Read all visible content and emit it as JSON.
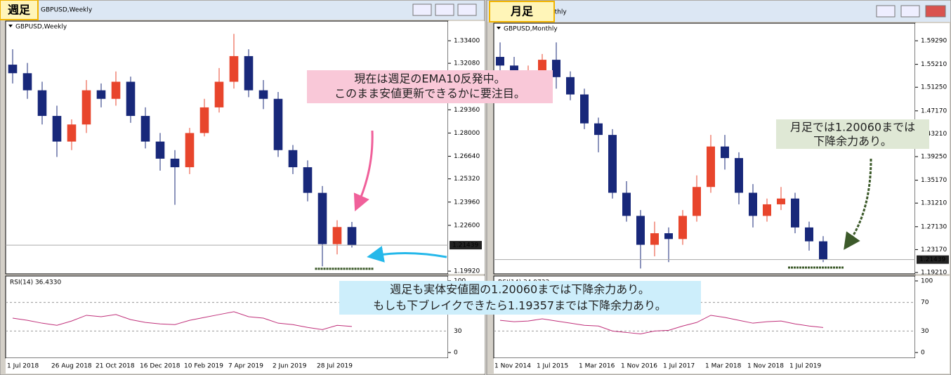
{
  "chart_data": [
    {
      "type": "candlestick",
      "window_title": "GBPUSD,Weekly",
      "symbol_label": "GBPUSD,Weekly",
      "timeframe_badge": "週足",
      "categories": [
        "1 Jul 2018",
        null,
        null,
        "26 Aug 2018",
        null,
        null,
        "21 Oct 2018",
        null,
        null,
        "16 Dec 2018",
        null,
        null,
        "10 Feb 2019",
        null,
        null,
        "7 Apr 2019",
        null,
        null,
        "2 Jun 2019",
        null,
        null,
        "28 Jul 2019",
        null,
        null
      ],
      "open": [
        1.32,
        1.315,
        1.305,
        1.29,
        1.275,
        1.285,
        1.305,
        1.3,
        1.31,
        1.29,
        1.275,
        1.265,
        1.26,
        1.28,
        1.295,
        1.31,
        1.325,
        1.305,
        1.3,
        1.27,
        1.26,
        1.245,
        1.215,
        1.225
      ],
      "high": [
        1.329,
        1.321,
        1.31,
        1.296,
        1.288,
        1.311,
        1.309,
        1.316,
        1.313,
        1.295,
        1.28,
        1.27,
        1.283,
        1.3,
        1.318,
        1.338,
        1.329,
        1.311,
        1.304,
        1.273,
        1.264,
        1.249,
        1.229,
        1.228
      ],
      "low": [
        1.309,
        1.3,
        1.285,
        1.266,
        1.27,
        1.28,
        1.295,
        1.296,
        1.286,
        1.271,
        1.258,
        1.238,
        1.256,
        1.278,
        1.292,
        1.306,
        1.301,
        1.294,
        1.266,
        1.256,
        1.24,
        1.202,
        1.209,
        1.213
      ],
      "close": [
        1.315,
        1.305,
        1.29,
        1.275,
        1.285,
        1.305,
        1.3,
        1.31,
        1.29,
        1.275,
        1.265,
        1.26,
        1.28,
        1.295,
        1.31,
        1.325,
        1.305,
        1.3,
        1.27,
        1.26,
        1.245,
        1.215,
        1.225,
        1.2144
      ],
      "up_color": "#e8452c",
      "down_color": "#18287a",
      "ylim": [
        1.1976,
        1.3455
      ],
      "yticks": [
        {
          "value": 1.334,
          "label": "1.33400"
        },
        {
          "value": 1.3208,
          "label": "1.32080"
        },
        {
          "value": 1.3076,
          "label": "1.30760"
        },
        {
          "value": 1.2936,
          "label": "1.29360"
        },
        {
          "value": 1.28,
          "label": "1.28000"
        },
        {
          "value": 1.2664,
          "label": "1.26640"
        },
        {
          "value": 1.2532,
          "label": "1.25320"
        },
        {
          "value": 1.2396,
          "label": "1.23960"
        },
        {
          "value": 1.226,
          "label": "1.22600"
        },
        {
          "value": 1.1992,
          "label": "1.19920"
        }
      ],
      "current_price": {
        "value": 1.21439,
        "label": "1.21439"
      },
      "support_level": 1.2006,
      "rsi": {
        "label": "RSI(14) 36.4330",
        "values": [
          48,
          45,
          41,
          38,
          44,
          52,
          50,
          53,
          46,
          42,
          40,
          39,
          45,
          49,
          53,
          57,
          50,
          48,
          41,
          39,
          35,
          32,
          38,
          36.433
        ],
        "ylim": [
          0,
          100
        ],
        "yticks": [
          100,
          70,
          30,
          0
        ],
        "color": "#c0307a"
      }
    },
    {
      "type": "candlestick",
      "window_title": "GBPUSD,Monthly",
      "symbol_label": "GBPUSD,Monthly",
      "timeframe_badge": "月足",
      "categories": [
        "1 Nov 2014",
        null,
        null,
        "1 Jul 2015",
        null,
        null,
        "1 Mar 2016",
        null,
        null,
        "1 Nov 2016",
        null,
        null,
        "1 Jul 2017",
        null,
        null,
        "1 Mar 2018",
        null,
        null,
        "1 Nov 2018",
        null,
        null,
        "1 Jul 2019",
        null,
        null
      ],
      "open": [
        1.565,
        1.55,
        1.52,
        1.54,
        1.56,
        1.53,
        1.5,
        1.45,
        1.43,
        1.33,
        1.29,
        1.24,
        1.26,
        1.25,
        1.29,
        1.34,
        1.41,
        1.39,
        1.33,
        1.29,
        1.31,
        1.32,
        1.27,
        1.246
      ],
      "high": [
        1.59,
        1.565,
        1.55,
        1.57,
        1.59,
        1.54,
        1.51,
        1.46,
        1.44,
        1.35,
        1.3,
        1.28,
        1.27,
        1.3,
        1.36,
        1.43,
        1.43,
        1.4,
        1.345,
        1.32,
        1.34,
        1.33,
        1.28,
        1.255
      ],
      "low": [
        1.53,
        1.51,
        1.505,
        1.52,
        1.51,
        1.49,
        1.44,
        1.4,
        1.32,
        1.28,
        1.199,
        1.22,
        1.21,
        1.24,
        1.28,
        1.33,
        1.37,
        1.31,
        1.27,
        1.28,
        1.3,
        1.26,
        1.23,
        1.21
      ],
      "close": [
        1.55,
        1.52,
        1.54,
        1.56,
        1.53,
        1.5,
        1.45,
        1.43,
        1.33,
        1.29,
        1.24,
        1.26,
        1.25,
        1.29,
        1.34,
        1.41,
        1.39,
        1.33,
        1.29,
        1.31,
        1.32,
        1.27,
        1.246,
        1.2144
      ],
      "up_color": "#e8452c",
      "down_color": "#18287a",
      "ylim": [
        1.1897,
        1.6233
      ],
      "yticks": [
        {
          "value": 1.5929,
          "label": "1.59290"
        },
        {
          "value": 1.5521,
          "label": "1.55210"
        },
        {
          "value": 1.5125,
          "label": "1.51250"
        },
        {
          "value": 1.4717,
          "label": "1.47170"
        },
        {
          "value": 1.4321,
          "label": "1.43210"
        },
        {
          "value": 1.3925,
          "label": "1.39250"
        },
        {
          "value": 1.3517,
          "label": "1.35170"
        },
        {
          "value": 1.3121,
          "label": "1.31210"
        },
        {
          "value": 1.2713,
          "label": "1.27130"
        },
        {
          "value": 1.2317,
          "label": "1.23170"
        },
        {
          "value": 1.1921,
          "label": "1.19210"
        }
      ],
      "current_price": {
        "value": 1.21439,
        "label": "1.21439"
      },
      "support_level": 1.2006,
      "rsi": {
        "label": "RSI(14) 34.9733",
        "values": [
          45,
          43,
          44,
          47,
          44,
          41,
          38,
          37,
          30,
          28,
          26,
          30,
          31,
          37,
          42,
          52,
          49,
          45,
          41,
          43,
          44,
          40,
          37,
          34.9733
        ],
        "ylim": [
          0,
          100
        ],
        "yticks": [
          100,
          70,
          30,
          0
        ],
        "color": "#c0307a"
      }
    }
  ],
  "annotations": {
    "weekly_note": [
      "現在は週足のEMA10反発中。",
      "このまま安値更新できるかに要注目。"
    ],
    "monthly_note": [
      "月足では1.20060までは",
      "下降余力あり。"
    ],
    "bottom_note": [
      "週足も実体安値圏の1.20060までは下降余力あり。",
      "もしも下ブレイクできたら1.19357までは下降余力あり。"
    ]
  }
}
